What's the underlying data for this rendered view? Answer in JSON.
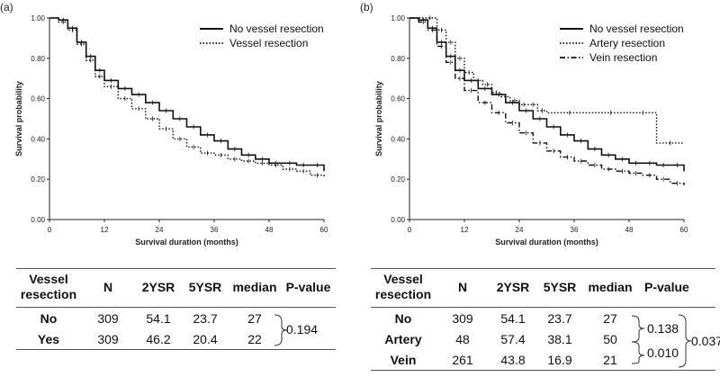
{
  "chart_data": [
    {
      "type": "line",
      "panel_label": "(a)",
      "title": "",
      "xlabel": "Survival duration (months)",
      "ylabel": "Survival probability",
      "xlim": [
        0,
        60
      ],
      "ylim": [
        0,
        1
      ],
      "x_ticks": [
        0,
        12,
        24,
        36,
        48,
        60
      ],
      "y_ticks": [
        "0.00",
        "0.20",
        "0.40",
        "0.60",
        "0.80",
        "1.00"
      ],
      "legend_position": "top-right",
      "series": [
        {
          "name": "No vessel resection",
          "style": "solid",
          "x": [
            0,
            2,
            4,
            6,
            8,
            10,
            12,
            15,
            18,
            21,
            24,
            27,
            30,
            33,
            36,
            39,
            42,
            45,
            48,
            51,
            54,
            57,
            60
          ],
          "y": [
            1.0,
            0.99,
            0.95,
            0.88,
            0.81,
            0.74,
            0.69,
            0.65,
            0.62,
            0.58,
            0.54,
            0.5,
            0.46,
            0.42,
            0.39,
            0.35,
            0.32,
            0.3,
            0.28,
            0.28,
            0.27,
            0.27,
            0.24
          ]
        },
        {
          "name": "Vessel resection",
          "style": "dotted",
          "x": [
            0,
            2,
            4,
            6,
            8,
            10,
            12,
            15,
            18,
            21,
            24,
            27,
            30,
            33,
            36,
            39,
            42,
            45,
            48,
            51,
            54,
            57,
            60
          ],
          "y": [
            1.0,
            0.98,
            0.94,
            0.87,
            0.79,
            0.71,
            0.66,
            0.6,
            0.55,
            0.5,
            0.45,
            0.4,
            0.36,
            0.33,
            0.32,
            0.3,
            0.29,
            0.28,
            0.27,
            0.25,
            0.24,
            0.22,
            0.21
          ]
        }
      ]
    },
    {
      "type": "line",
      "panel_label": "(b)",
      "title": "",
      "xlabel": "Survival duration (months)",
      "ylabel": "Survival probability",
      "xlim": [
        0,
        60
      ],
      "ylim": [
        0,
        1
      ],
      "x_ticks": [
        0,
        12,
        24,
        36,
        48,
        60
      ],
      "y_ticks": [
        "0.00",
        "0.20",
        "0.40",
        "0.60",
        "0.80",
        "1.00"
      ],
      "legend_position": "top-right",
      "series": [
        {
          "name": "No vessel resection",
          "style": "solid",
          "x": [
            0,
            2,
            4,
            6,
            8,
            10,
            12,
            15,
            18,
            21,
            24,
            27,
            30,
            33,
            36,
            39,
            42,
            45,
            48,
            51,
            54,
            57,
            60
          ],
          "y": [
            1.0,
            0.99,
            0.95,
            0.88,
            0.81,
            0.74,
            0.69,
            0.65,
            0.62,
            0.58,
            0.54,
            0.5,
            0.46,
            0.42,
            0.39,
            0.35,
            0.32,
            0.3,
            0.28,
            0.28,
            0.27,
            0.27,
            0.24
          ]
        },
        {
          "name": "Artery resection",
          "style": "dotted",
          "x": [
            0,
            3,
            6,
            8,
            10,
            12,
            14,
            16,
            18,
            20,
            22,
            24,
            26,
            28,
            30,
            40,
            48,
            54,
            60
          ],
          "y": [
            1.0,
            1.0,
            0.94,
            0.88,
            0.8,
            0.73,
            0.69,
            0.67,
            0.63,
            0.61,
            0.59,
            0.57,
            0.57,
            0.54,
            0.53,
            0.53,
            0.53,
            0.38,
            0.38
          ]
        },
        {
          "name": "Vein resection",
          "style": "dash-dot",
          "x": [
            0,
            2,
            4,
            6,
            8,
            10,
            12,
            15,
            18,
            21,
            24,
            27,
            30,
            33,
            36,
            39,
            42,
            45,
            48,
            51,
            54,
            57,
            60
          ],
          "y": [
            1.0,
            0.98,
            0.94,
            0.86,
            0.78,
            0.7,
            0.64,
            0.58,
            0.53,
            0.48,
            0.43,
            0.38,
            0.34,
            0.31,
            0.29,
            0.27,
            0.25,
            0.24,
            0.23,
            0.22,
            0.2,
            0.18,
            0.17
          ]
        }
      ]
    },
    {
      "type": "table",
      "columns": [
        "Vessel resection",
        "N",
        "2YSR",
        "5YSR",
        "median",
        "P-value"
      ],
      "rows": [
        {
          "label": "No",
          "n": "309",
          "ysr2": "54.1",
          "ysr5": "23.7",
          "median": "27"
        },
        {
          "label": "Yes",
          "n": "309",
          "ysr2": "46.2",
          "ysr5": "20.4",
          "median": "22"
        }
      ],
      "p_values": {
        "no_vs_yes": "0.194"
      }
    },
    {
      "type": "table",
      "columns": [
        "Vessel resection",
        "N",
        "2YSR",
        "5YSR",
        "median",
        "P-value"
      ],
      "rows": [
        {
          "label": "No",
          "n": "309",
          "ysr2": "54.1",
          "ysr5": "23.7",
          "median": "27"
        },
        {
          "label": "Artery",
          "n": "48",
          "ysr2": "57.4",
          "ysr5": "38.1",
          "median": "50"
        },
        {
          "label": "Vein",
          "n": "261",
          "ysr2": "43.8",
          "ysr5": "16.9",
          "median": "21"
        }
      ],
      "p_values": {
        "no_vs_artery": "0.138",
        "artery_vs_vein": "0.010",
        "overall": "0.037"
      }
    }
  ]
}
